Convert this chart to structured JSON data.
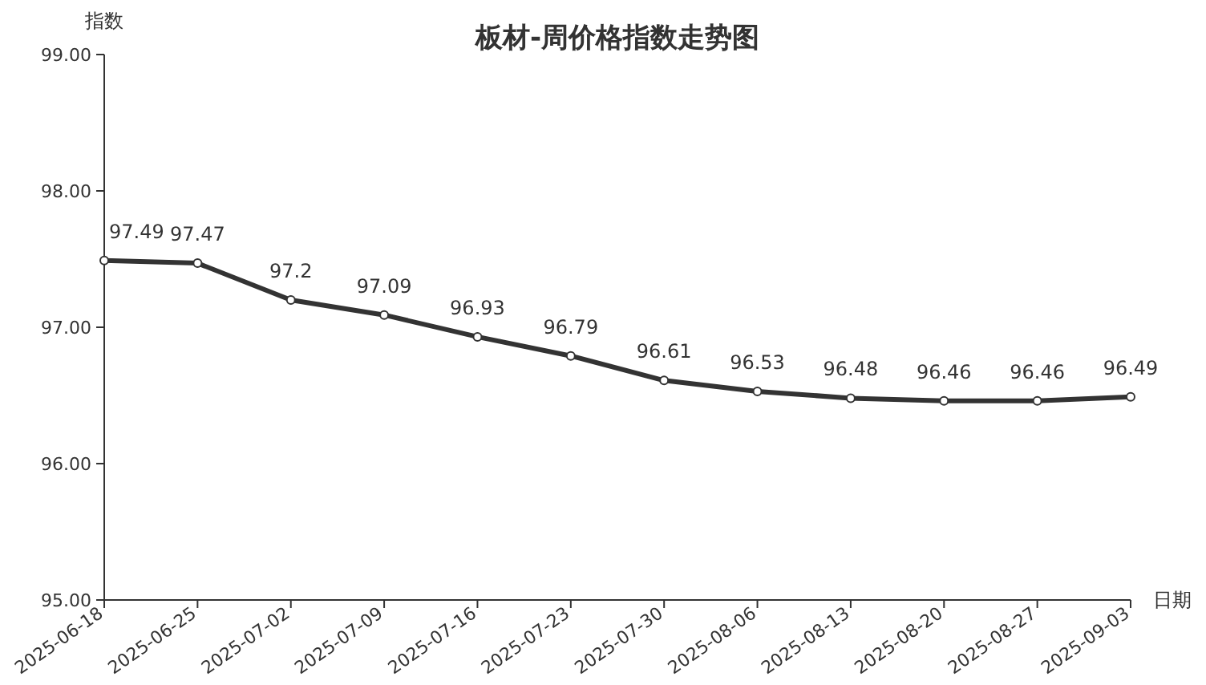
{
  "chart_data": {
    "type": "line",
    "title": "板材-周价格指数走势图",
    "xlabel": "日期",
    "ylabel": "指数",
    "categories": [
      "2025-06-18",
      "2025-06-25",
      "2025-07-02",
      "2025-07-09",
      "2025-07-16",
      "2025-07-23",
      "2025-07-30",
      "2025-08-06",
      "2025-08-13",
      "2025-08-20",
      "2025-08-27",
      "2025-09-03"
    ],
    "series": [
      {
        "color": "#333333",
        "values": [
          97.49,
          97.47,
          97.2,
          97.09,
          96.93,
          96.79,
          96.61,
          96.53,
          96.48,
          96.46,
          96.46,
          96.49
        ]
      }
    ],
    "ylim": [
      95,
      99
    ],
    "yticks": [
      {
        "value": 95,
        "label": "95.00"
      },
      {
        "value": 96,
        "label": "96.00"
      },
      {
        "value": 97,
        "label": "97.00"
      },
      {
        "value": 98,
        "label": "98.00"
      },
      {
        "value": 99,
        "label": "99.00"
      }
    ],
    "data_labels": true,
    "marker": "circle",
    "line_style": "solid",
    "grid": false
  }
}
